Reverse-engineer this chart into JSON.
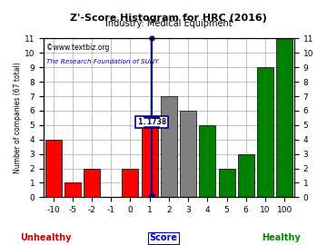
{
  "title": "Z'-Score Histogram for HRC (2016)",
  "subtitle": "Industry: Medical Equipment",
  "watermark1": "©www.textbiz.org",
  "watermark2": "The Research Foundation of SUNY",
  "xlabel_left": "Unhealthy",
  "xlabel_center": "Score",
  "xlabel_right": "Healthy",
  "ylabel": "Number of companies (67 total)",
  "marker_label": "1.1738",
  "marker_bar_index": 5,
  "bar_labels": [
    "-10",
    "-5",
    "-2",
    "-1",
    "0",
    "1",
    "2",
    "3",
    "4",
    "5",
    "6",
    "10",
    "100"
  ],
  "bar_heights": [
    4,
    1,
    2,
    0,
    2,
    5,
    7,
    6,
    5,
    2,
    3,
    9,
    11
  ],
  "bar_colors": [
    "red",
    "red",
    "red",
    "red",
    "red",
    "red",
    "gray",
    "gray",
    "green",
    "green",
    "green",
    "green",
    "green"
  ],
  "ylim": [
    0,
    11
  ],
  "ytick_positions": [
    0,
    1,
    2,
    3,
    4,
    5,
    6,
    7,
    8,
    9,
    10,
    11
  ],
  "title_color": "#000000",
  "subtitle_color": "#000000",
  "watermark1_color": "#000000",
  "watermark2_color": "#0000cc",
  "unhealthy_color": "#cc0000",
  "healthy_color": "#008800",
  "score_color": "#0000cc",
  "grid_color": "#aaaaaa",
  "marker_line_color": "#00008B",
  "marker_dot_color": "#00008B",
  "bg_color": "#ffffff"
}
